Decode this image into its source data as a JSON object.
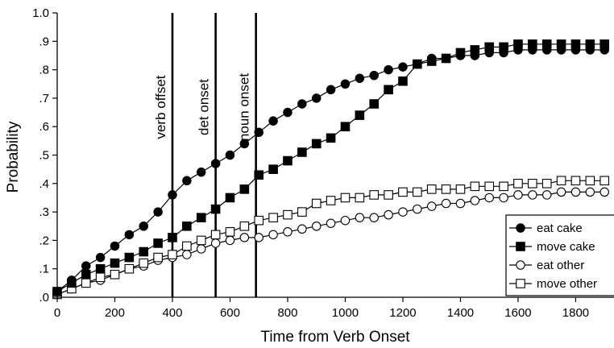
{
  "chart_data": {
    "type": "line",
    "title": "",
    "xlabel": "Time from Verb Onset",
    "ylabel": "Probability",
    "xlim": [
      0,
      1933
    ],
    "ylim": [
      0,
      1.0
    ],
    "xticks": [
      0,
      200,
      400,
      600,
      800,
      1000,
      1200,
      1400,
      1600,
      1800
    ],
    "xtick_labels": [
      "0",
      "200",
      "400",
      "600",
      "800",
      "1000",
      "1200",
      "1400",
      "1600",
      "1800"
    ],
    "yticks": [
      0,
      0.1,
      0.2,
      0.3,
      0.4,
      0.5,
      0.6,
      0.7,
      0.8,
      0.9,
      1.0
    ],
    "ytick_labels": [
      ".0",
      ".1",
      ".2",
      ".3",
      ".4",
      ".5",
      ".6",
      ".7",
      ".8",
      ".9",
      "1.0"
    ],
    "grid": false,
    "legend_position": "bottom-right",
    "events": [
      {
        "label": "verb offset",
        "x": 400
      },
      {
        "label": "det onset",
        "x": 550
      },
      {
        "label": "noun onset",
        "x": 690
      }
    ],
    "x": [
      0,
      50,
      100,
      150,
      200,
      250,
      300,
      350,
      400,
      450,
      500,
      550,
      600,
      650,
      700,
      750,
      800,
      850,
      900,
      950,
      1000,
      1050,
      1100,
      1150,
      1200,
      1250,
      1300,
      1350,
      1400,
      1450,
      1500,
      1550,
      1600,
      1650,
      1700,
      1750,
      1800,
      1850,
      1900
    ],
    "series": [
      {
        "name": "eat cake",
        "marker": "filled-circle",
        "values": [
          0.02,
          0.06,
          0.11,
          0.14,
          0.18,
          0.22,
          0.25,
          0.3,
          0.36,
          0.41,
          0.44,
          0.47,
          0.5,
          0.54,
          0.58,
          0.62,
          0.65,
          0.68,
          0.7,
          0.73,
          0.75,
          0.77,
          0.78,
          0.8,
          0.81,
          0.82,
          0.84,
          0.84,
          0.85,
          0.85,
          0.86,
          0.86,
          0.87,
          0.87,
          0.87,
          0.87,
          0.87,
          0.87,
          0.87
        ]
      },
      {
        "name": "move cake",
        "marker": "filled-square",
        "values": [
          0.02,
          0.05,
          0.08,
          0.1,
          0.12,
          0.14,
          0.16,
          0.19,
          0.21,
          0.25,
          0.28,
          0.31,
          0.35,
          0.38,
          0.43,
          0.45,
          0.48,
          0.51,
          0.54,
          0.56,
          0.6,
          0.64,
          0.68,
          0.73,
          0.76,
          0.82,
          0.83,
          0.84,
          0.86,
          0.87,
          0.88,
          0.88,
          0.89,
          0.89,
          0.89,
          0.89,
          0.89,
          0.89,
          0.89
        ]
      },
      {
        "name": "eat other",
        "marker": "open-circle",
        "values": [
          0.01,
          0.03,
          0.05,
          0.06,
          0.08,
          0.1,
          0.11,
          0.13,
          0.14,
          0.15,
          0.17,
          0.19,
          0.2,
          0.21,
          0.21,
          0.22,
          0.23,
          0.24,
          0.25,
          0.26,
          0.27,
          0.28,
          0.28,
          0.29,
          0.3,
          0.31,
          0.32,
          0.33,
          0.33,
          0.34,
          0.35,
          0.35,
          0.36,
          0.36,
          0.36,
          0.37,
          0.37,
          0.37,
          0.37
        ]
      },
      {
        "name": "move other",
        "marker": "open-square",
        "values": [
          0.01,
          0.03,
          0.05,
          0.07,
          0.08,
          0.1,
          0.12,
          0.14,
          0.15,
          0.18,
          0.2,
          0.22,
          0.23,
          0.25,
          0.27,
          0.28,
          0.29,
          0.3,
          0.33,
          0.34,
          0.35,
          0.35,
          0.36,
          0.36,
          0.37,
          0.37,
          0.38,
          0.38,
          0.38,
          0.39,
          0.39,
          0.39,
          0.4,
          0.4,
          0.4,
          0.41,
          0.41,
          0.41,
          0.41
        ]
      }
    ]
  }
}
